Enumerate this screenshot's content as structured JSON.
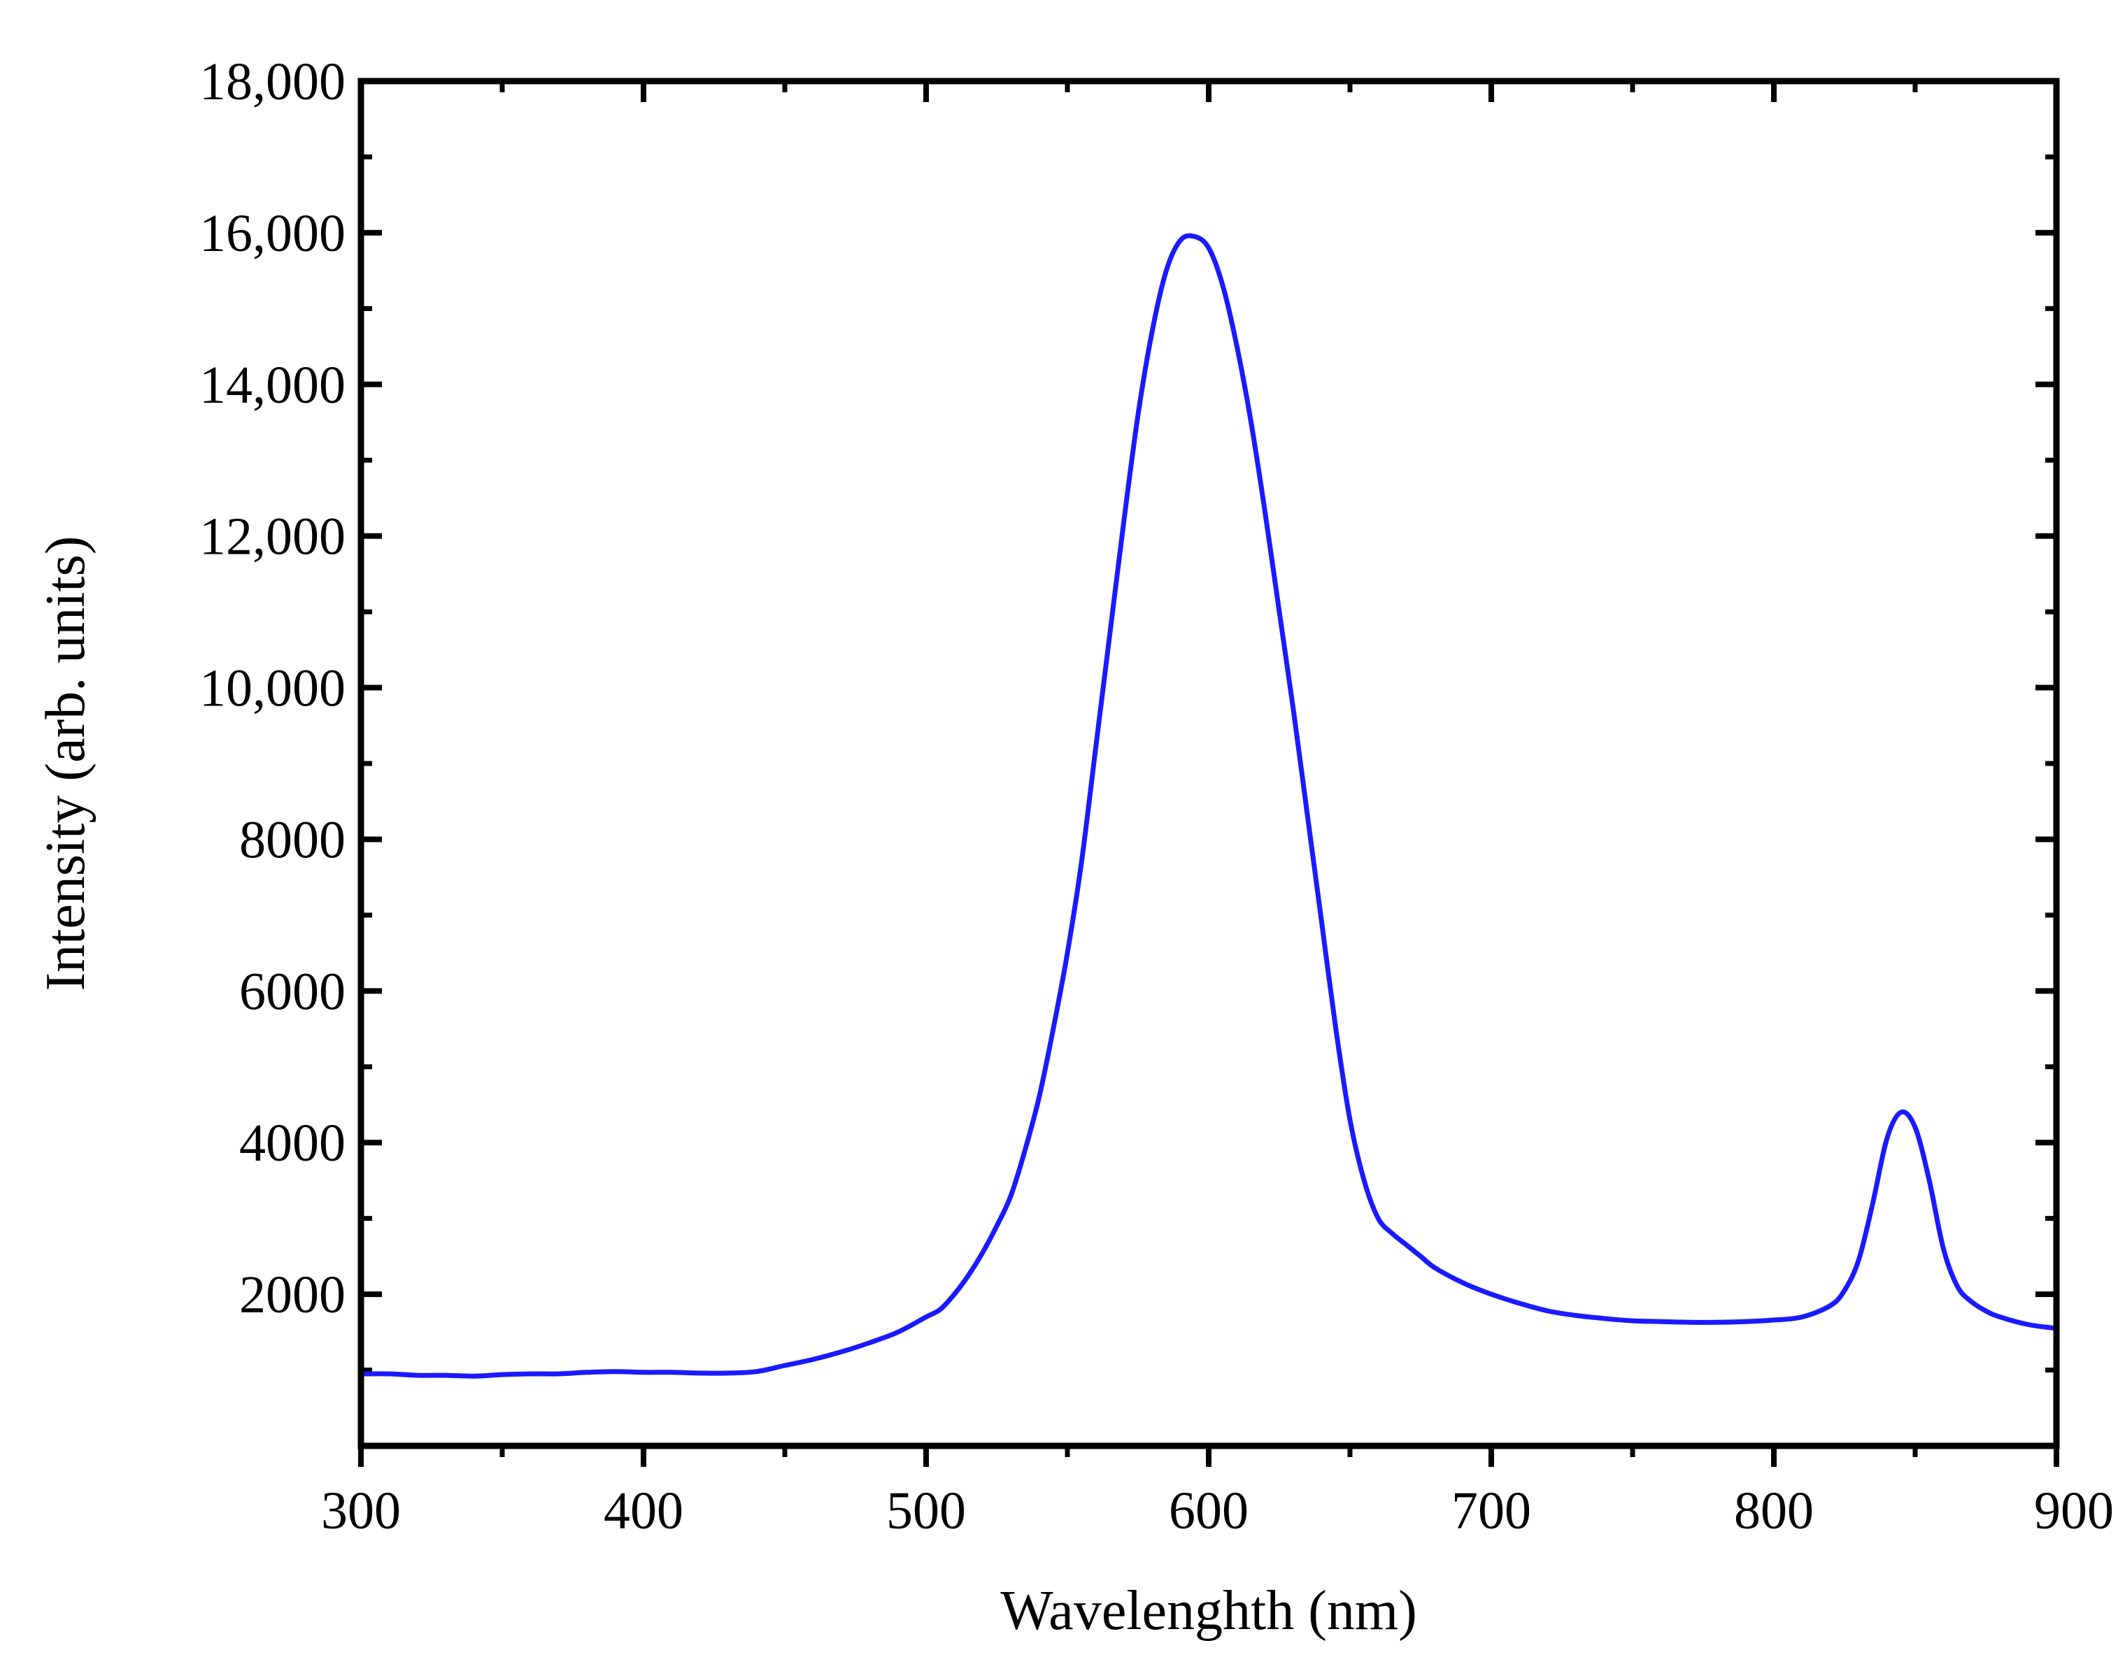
{
  "chart_data": {
    "type": "line",
    "title": "",
    "xlabel": "Wavelenghth (nm)",
    "ylabel": "Intensity (arb. units)",
    "xlim": [
      300,
      900
    ],
    "ylim": [
      0,
      18000
    ],
    "grid": false,
    "x_ticks": [
      300,
      400,
      500,
      600,
      700,
      800,
      900
    ],
    "x_tick_labels": [
      "300",
      "400",
      "500",
      "600",
      "700",
      "800",
      "900"
    ],
    "y_ticks": [
      2000,
      4000,
      6000,
      8000,
      10000,
      12000,
      14000,
      16000,
      18000
    ],
    "y_tick_labels": [
      "2000",
      "4000",
      "6000",
      "8000",
      "10,000",
      "12,000",
      "14,000",
      "16,000",
      "18,000"
    ],
    "series": [
      {
        "color": "#1a1aff",
        "x": [
          300,
          310,
          320,
          330,
          340,
          350,
          360,
          370,
          380,
          390,
          400,
          410,
          420,
          430,
          440,
          450,
          460,
          470,
          480,
          490,
          500,
          505,
          510,
          515,
          520,
          525,
          530,
          535,
          540,
          545,
          550,
          555,
          560,
          565,
          570,
          575,
          580,
          585,
          590,
          595,
          600,
          605,
          610,
          615,
          620,
          625,
          630,
          635,
          640,
          645,
          650,
          655,
          660,
          665,
          670,
          675,
          680,
          690,
          700,
          710,
          720,
          730,
          740,
          750,
          760,
          770,
          780,
          790,
          800,
          810,
          820,
          825,
          830,
          835,
          840,
          845,
          850,
          855,
          860,
          865,
          870,
          875,
          880,
          890,
          900
        ],
        "y": [
          950,
          950,
          930,
          930,
          920,
          940,
          950,
          950,
          970,
          980,
          970,
          970,
          960,
          960,
          980,
          1060,
          1140,
          1240,
          1360,
          1500,
          1700,
          1800,
          2000,
          2250,
          2550,
          2900,
          3300,
          3900,
          4600,
          5500,
          6500,
          7700,
          9200,
          10700,
          12200,
          13600,
          14700,
          15500,
          15900,
          15950,
          15800,
          15300,
          14500,
          13500,
          12300,
          11000,
          9700,
          8300,
          6900,
          5500,
          4300,
          3500,
          3000,
          2800,
          2650,
          2500,
          2350,
          2150,
          2000,
          1880,
          1780,
          1720,
          1680,
          1650,
          1640,
          1630,
          1630,
          1640,
          1660,
          1700,
          1850,
          2050,
          2450,
          3200,
          4050,
          4400,
          4200,
          3500,
          2600,
          2100,
          1900,
          1780,
          1700,
          1600,
          1550
        ]
      }
    ]
  }
}
